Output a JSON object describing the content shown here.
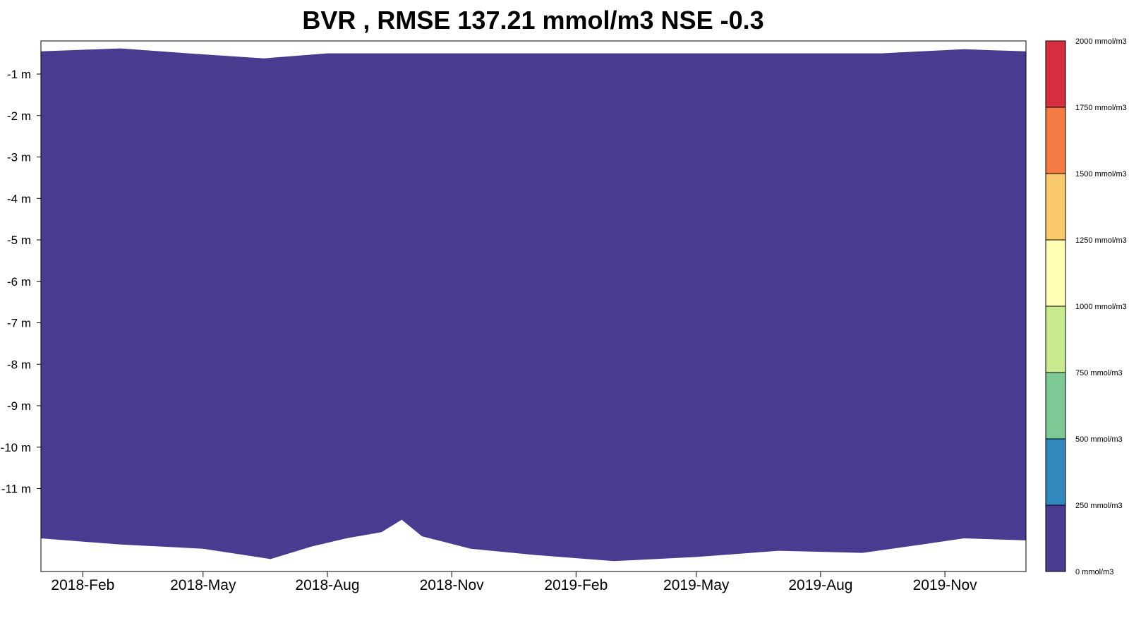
{
  "chart_data": {
    "type": "heatmap",
    "title": "BVR , RMSE 137.21 mmol/m3 NSE -0.3",
    "xlabel": "",
    "ylabel": "",
    "x_range": [
      "2018-01-01",
      "2019-12-31"
    ],
    "x_tick_labels": [
      "2018-Feb",
      "2018-May",
      "2018-Aug",
      "2018-Nov",
      "2019-Feb",
      "2019-May",
      "2019-Aug",
      "2019-Nov"
    ],
    "x_tick_dates": [
      "2018-02-01",
      "2018-05-01",
      "2018-08-01",
      "2018-11-01",
      "2019-02-01",
      "2019-05-01",
      "2019-08-01",
      "2019-11-01"
    ],
    "y_range": [
      -13.0,
      -0.2
    ],
    "y_ticks": [
      -1,
      -2,
      -3,
      -4,
      -5,
      -6,
      -7,
      -8,
      -9,
      -10,
      -11
    ],
    "y_tick_labels": [
      "-1 m",
      "-2 m",
      "-3 m",
      "-4 m",
      "-5 m",
      "-6 m",
      "-7 m",
      "-8 m",
      "-9 m",
      "-10 m",
      "-11 m"
    ],
    "fill_color": "#4b3b90",
    "fill_value_range_mmol_m3": [
      0,
      250
    ],
    "surface_depth_m": [
      {
        "date": "2018-01-01",
        "depth": -0.45
      },
      {
        "date": "2018-03-01",
        "depth": -0.38
      },
      {
        "date": "2018-04-20",
        "depth": -0.5
      },
      {
        "date": "2018-06-15",
        "depth": -0.62
      },
      {
        "date": "2018-08-01",
        "depth": -0.5
      },
      {
        "date": "2018-10-01",
        "depth": -0.5
      },
      {
        "date": "2019-01-01",
        "depth": -0.5
      },
      {
        "date": "2019-04-01",
        "depth": -0.5
      },
      {
        "date": "2019-07-01",
        "depth": -0.5
      },
      {
        "date": "2019-09-15",
        "depth": -0.5
      },
      {
        "date": "2019-11-15",
        "depth": -0.4
      },
      {
        "date": "2019-12-31",
        "depth": -0.45
      }
    ],
    "bottom_depth_m": [
      {
        "date": "2018-01-01",
        "depth": -12.2
      },
      {
        "date": "2018-03-01",
        "depth": -12.35
      },
      {
        "date": "2018-05-01",
        "depth": -12.45
      },
      {
        "date": "2018-06-20",
        "depth": -12.7
      },
      {
        "date": "2018-07-20",
        "depth": -12.4
      },
      {
        "date": "2018-08-15",
        "depth": -12.2
      },
      {
        "date": "2018-09-10",
        "depth": -12.05
      },
      {
        "date": "2018-09-25",
        "depth": -11.75
      },
      {
        "date": "2018-10-10",
        "depth": -12.15
      },
      {
        "date": "2018-11-15",
        "depth": -12.45
      },
      {
        "date": "2019-01-01",
        "depth": -12.6
      },
      {
        "date": "2019-03-01",
        "depth": -12.75
      },
      {
        "date": "2019-05-01",
        "depth": -12.65
      },
      {
        "date": "2019-07-01",
        "depth": -12.5
      },
      {
        "date": "2019-09-01",
        "depth": -12.55
      },
      {
        "date": "2019-10-15",
        "depth": -12.35
      },
      {
        "date": "2019-11-15",
        "depth": -12.2
      },
      {
        "date": "2019-12-31",
        "depth": -12.25
      }
    ],
    "legend": {
      "position": "right",
      "unit": "mmol/m3",
      "ticks": [
        0,
        250,
        500,
        750,
        1000,
        1250,
        1500,
        1750,
        2000
      ],
      "tick_labels": [
        "0 mmol/m3",
        "250 mmol/m3",
        "500 mmol/m3",
        "750 mmol/m3",
        "1000 mmol/m3",
        "1250 mmol/m3",
        "1500 mmol/m3",
        "1750 mmol/m3",
        "2000 mmol/m3"
      ],
      "bin_colors": [
        "#4b3b90",
        "#3288bd",
        "#7dc894",
        "#c9e98f",
        "#fefeb4",
        "#f9c86a",
        "#f47c44",
        "#d52e3f"
      ]
    }
  }
}
